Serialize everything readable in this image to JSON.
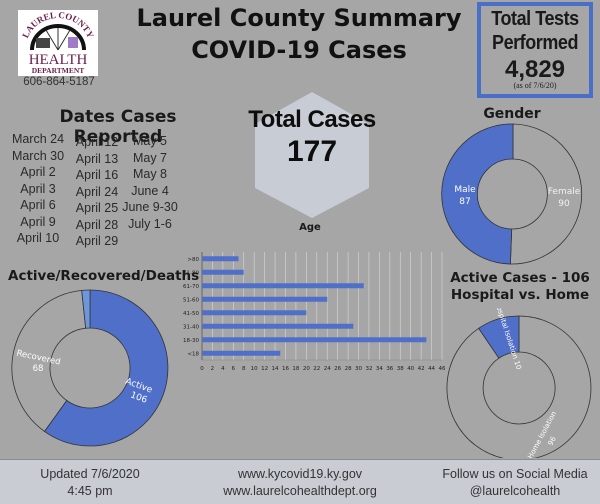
{
  "header": {
    "title_line1": "Laurel County Summary",
    "title_line2": "COVID-19 Cases",
    "logo": {
      "arc_text": "LAUREL COUNTY",
      "line1": "HEALTH",
      "line2": "DEPARTMENT"
    },
    "phone": "606-864-5187"
  },
  "tests": {
    "label_line1": "Total Tests",
    "label_line2": "Performed",
    "value": "4,829",
    "as_of": "(as of 7/6/20)",
    "border_color": "#4a6fc7"
  },
  "total_cases": {
    "label": "Total Cases",
    "value": "177"
  },
  "dates": {
    "heading": "Dates Cases Reported",
    "columns": [
      [
        "March 24",
        "March 30",
        "April 2",
        "April 3",
        "April 6",
        "April 9",
        "April 10"
      ],
      [
        "April 12",
        "April 13",
        "April 16",
        "April 24",
        "April 25",
        "April 28",
        "April 29"
      ],
      [
        "May 5",
        "May 7",
        "May 8",
        "June 4",
        "June 9-30",
        "July 1-6"
      ]
    ]
  },
  "footer": {
    "updated_line1": "Updated 7/6/2020",
    "updated_line2": "4:45 pm",
    "site1": "www.kycovid19.ky.gov",
    "site2": "www.laurelcohealthdept.org",
    "social_line1": "Follow us on Social Media",
    "social_line2": "@laurelcohealth"
  },
  "colors": {
    "background": "#a6a6a6",
    "accent_blue": "#4f6fc9",
    "light_blue": "#6c97dd",
    "hex_fill": "#c8ccd5",
    "footer": "#c9ccd3"
  },
  "chart_data": [
    {
      "type": "pie",
      "title": "Gender",
      "style": "donut",
      "labels": [
        "Female",
        "Male"
      ],
      "values": [
        90,
        87
      ],
      "colors": [
        "#a6a6a6",
        "#4f6fc9"
      ]
    },
    {
      "type": "bar",
      "orientation": "horizontal",
      "title": "Age",
      "categories": [
        ">80",
        "71-80",
        "61-70",
        "51-60",
        "41-50",
        "31-40",
        "18-30",
        "<18"
      ],
      "values": [
        7,
        8,
        31,
        24,
        20,
        29,
        43,
        15
      ],
      "xlabel": "",
      "ylabel": "",
      "xlim": [
        0,
        46
      ],
      "xticks": [
        0,
        2,
        4,
        6,
        8,
        10,
        12,
        14,
        16,
        18,
        20,
        22,
        24,
        26,
        28,
        30,
        32,
        34,
        36,
        38,
        40,
        42,
        44,
        46
      ],
      "grid": true,
      "color": "#4f6fc9"
    },
    {
      "type": "pie",
      "title": "Active/Recovered/Deaths",
      "style": "donut",
      "labels": [
        "Active",
        "Recovered",
        "Deaths"
      ],
      "values": [
        106,
        68,
        3
      ],
      "colors": [
        "#4f6fc9",
        "#a6a6a6",
        "#6c97dd"
      ]
    },
    {
      "type": "pie",
      "title": "Active Cases - 106 Hospital vs. Home",
      "title_line1": "Active Cases - 106",
      "title_line2": "Hospital vs. Home",
      "style": "donut",
      "labels": [
        "Home Isolation",
        "Hospital Isolation"
      ],
      "values": [
        96,
        10
      ],
      "colors": [
        "#a6a6a6",
        "#4f6fc9"
      ]
    }
  ]
}
